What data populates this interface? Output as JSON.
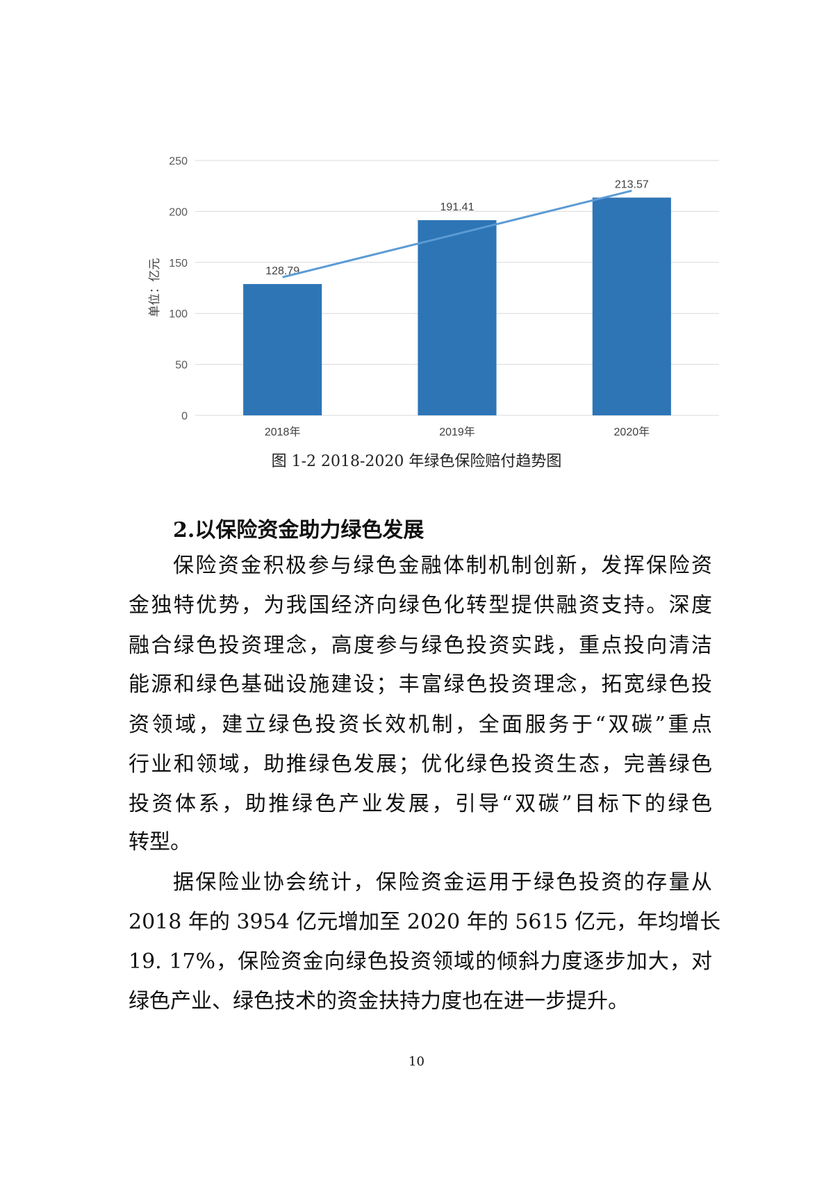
{
  "chart_data": {
    "type": "bar",
    "categories": [
      "2018年",
      "2019年",
      "2020年"
    ],
    "values": [
      128.79,
      191.41,
      213.57
    ],
    "data_labels": [
      "128.79",
      "191.41",
      "213.57"
    ],
    "ylabel": "单位：亿元",
    "ylim": [
      0,
      250
    ],
    "yticks": [
      0,
      50,
      100,
      150,
      200,
      250
    ],
    "grid": true,
    "trendline": "linear",
    "bar_color": "#2E75B6",
    "trendline_color": "#5B9BD5"
  },
  "caption": "图 1-2   2018-2020 年绿色保险赔付趋势图",
  "heading": "2.以保险资金助力绿色发展",
  "paragraphs": [
    {
      "lines": [
        "保险资金积极参与绿色金融体制机制创新，发挥保险资",
        "金独特优势，为我国经济向绿色化转型提供融资支持。深度",
        "融合绿色投资理念，高度参与绿色投资实践，重点投向清洁",
        "能源和绿色基础设施建设；丰富绿色投资理念，拓宽绿色投",
        "资领域，建立绿色投资长效机制，全面服务于“双碳”重点",
        "行业和领域，助推绿色发展；优化绿色投资生态，完善绿色",
        "投资体系，助推绿色产业发展，引导“双碳”目标下的绿色",
        "转型。"
      ]
    },
    {
      "lines": [
        "据保险业协会统计，保险资金运用于绿色投资的存量从",
        "2018 年的 3954 亿元增加至 2020 年的 5615 亿元，年均增长",
        "19. 17%，保险资金向绿色投资领域的倾斜力度逐步加大，对",
        "绿色产业、绿色技术的资金扶持力度也在进一步提升。"
      ]
    }
  ],
  "page_number": "10"
}
